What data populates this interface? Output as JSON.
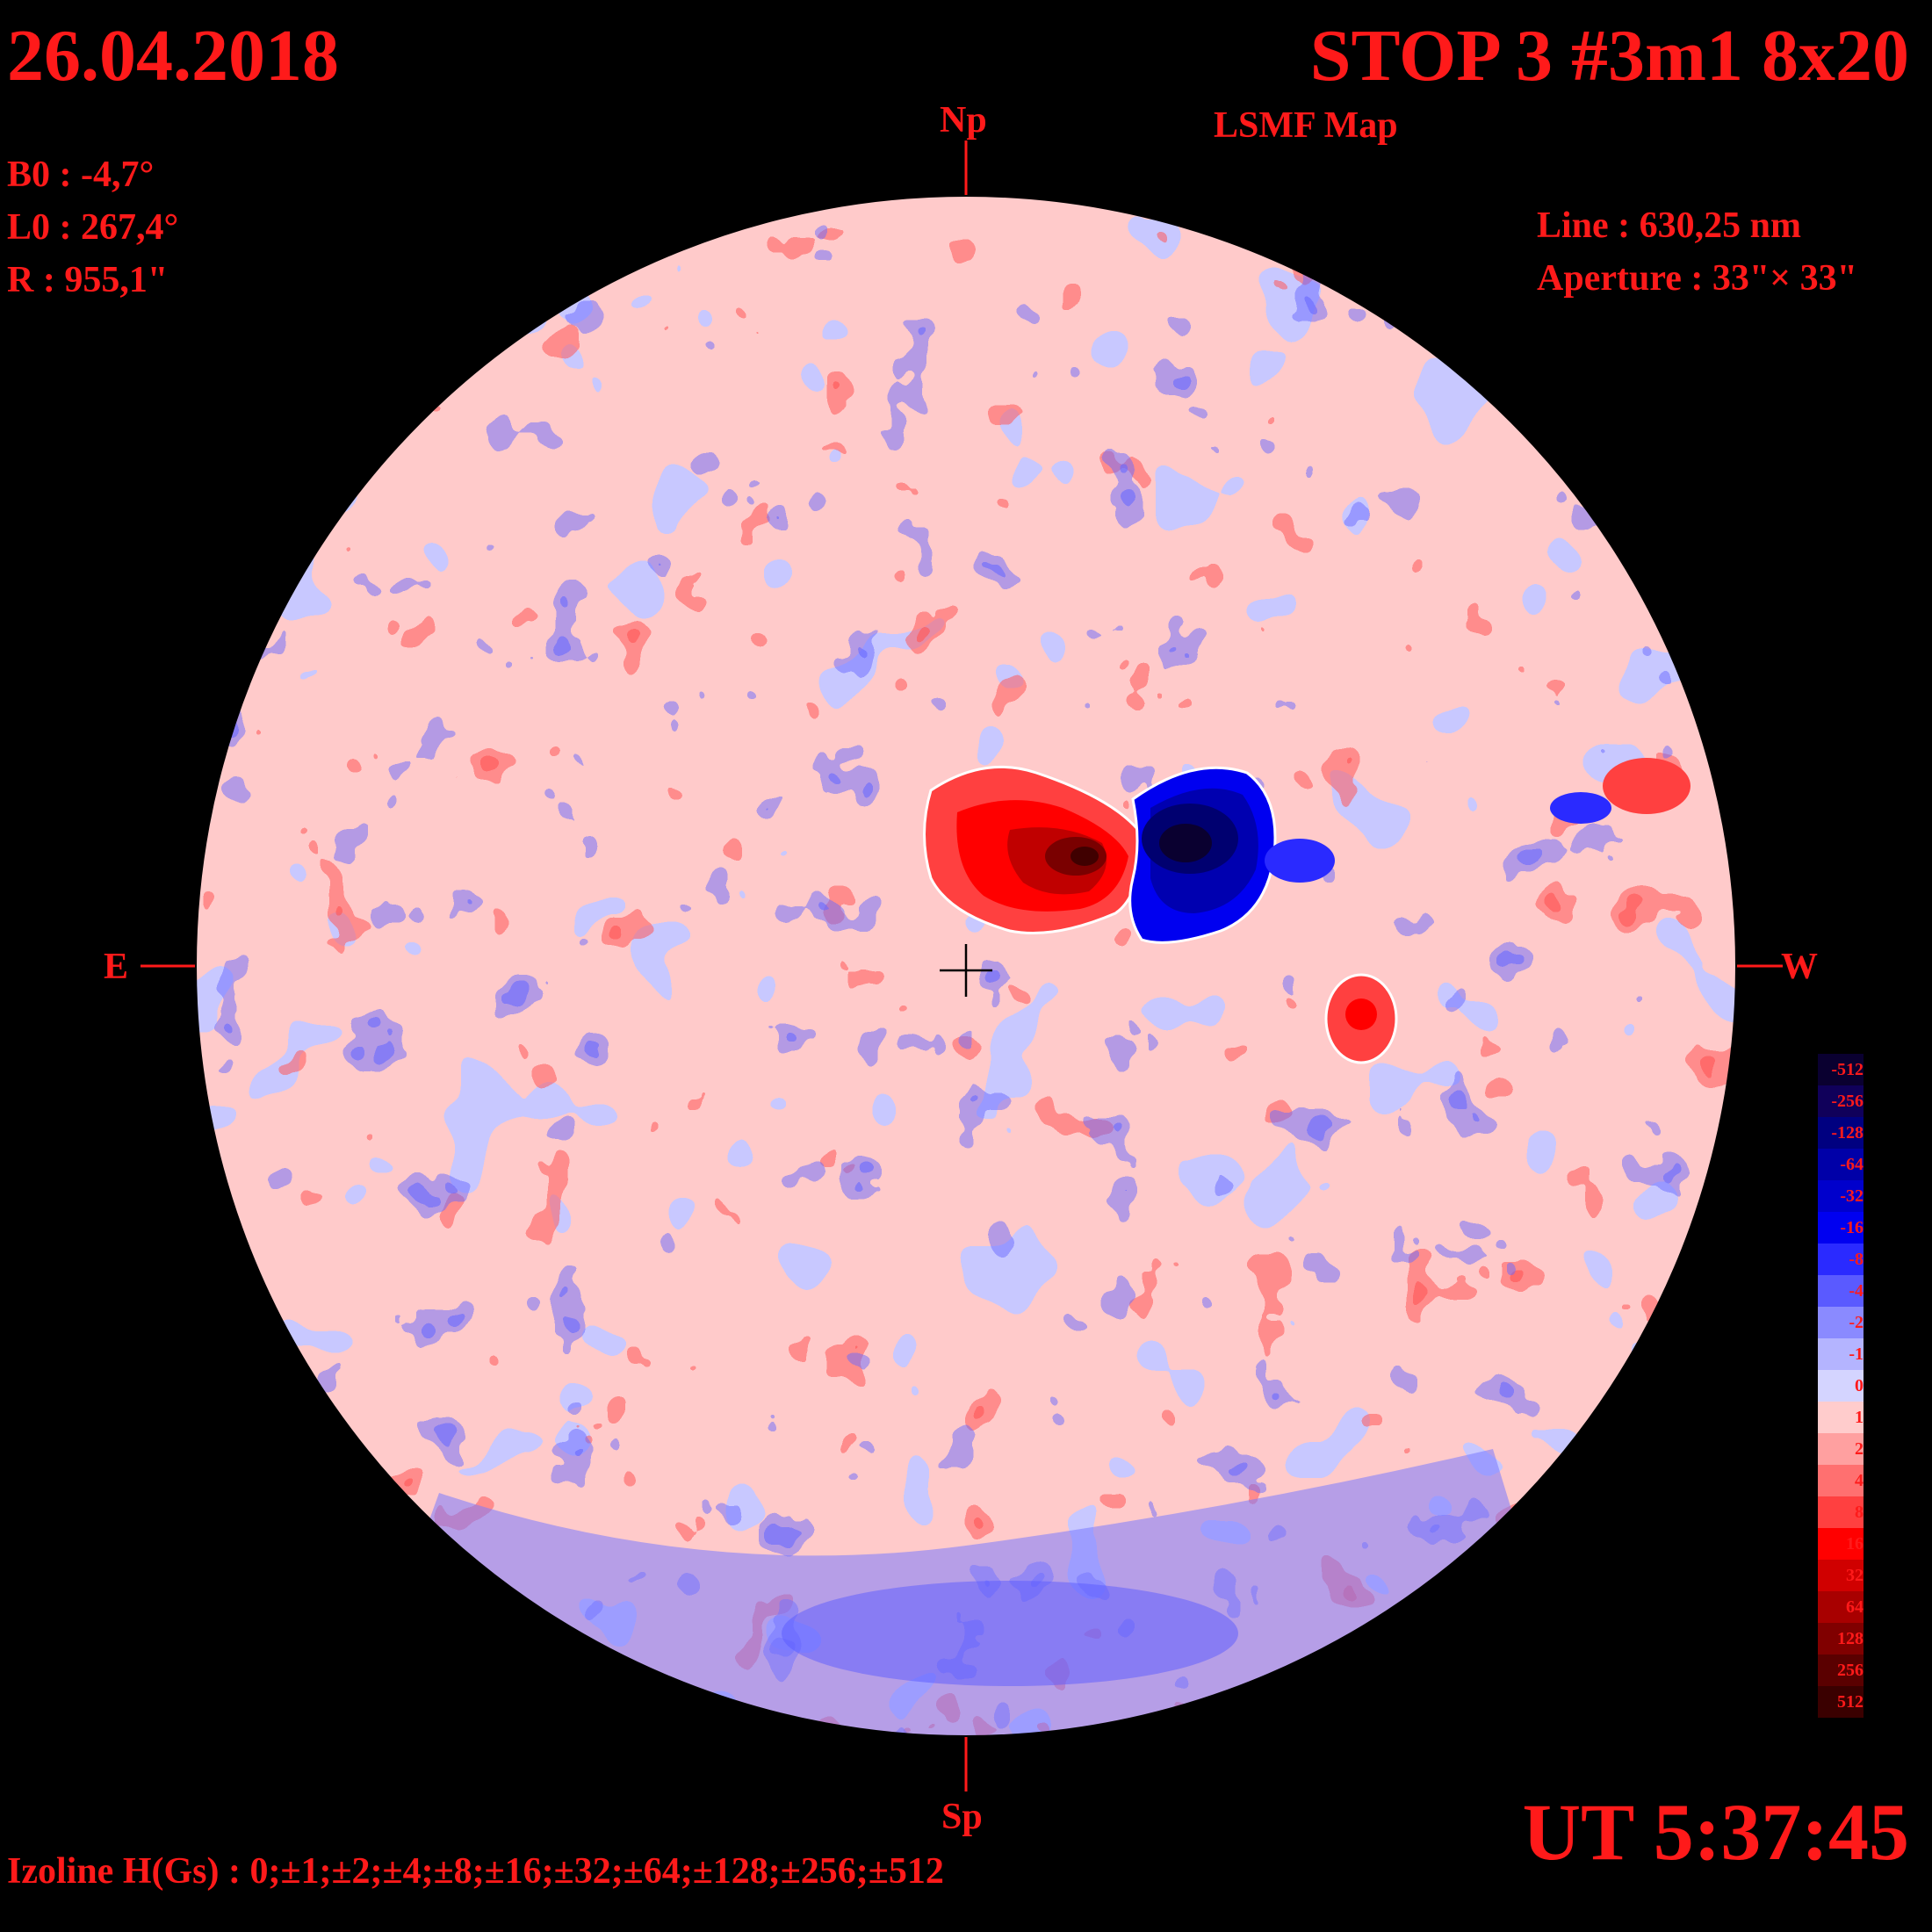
{
  "header": {
    "date": "26.04.2018",
    "title": "STOP 3 #3m1 8x20",
    "subtitle": "LSMF  Map"
  },
  "parameters": {
    "b0": "B0 : -4,7°",
    "l0": "L0 : 267,4°",
    "r": "R  : 955,1\""
  },
  "instrument": {
    "line": "Line :  630,25 nm",
    "aperture": "Aperture : 33\"× 33\""
  },
  "directions": {
    "north": "Np",
    "south": "Sp",
    "east": "E",
    "west": "W"
  },
  "footer": {
    "izoline": "Izoline H(Gs) : 0;±1;±2;±4;±8;±16;±32;±64;±128;±256;±512",
    "time": "UT 5:37:45"
  },
  "legend": {
    "entries": [
      {
        "label": "-512",
        "color": "#0a0030"
      },
      {
        "label": "-256",
        "color": "#10005a"
      },
      {
        "label": "-128",
        "color": "#000080"
      },
      {
        "label": "-64",
        "color": "#0000a8"
      },
      {
        "label": "-32",
        "color": "#0000cc"
      },
      {
        "label": "-16",
        "color": "#0000f0"
      },
      {
        "label": "-8",
        "color": "#2a2aff"
      },
      {
        "label": "-4",
        "color": "#5a5aff"
      },
      {
        "label": "-2",
        "color": "#8a8aff"
      },
      {
        "label": "-1",
        "color": "#b4b4ff"
      },
      {
        "label": "0",
        "color": "#d4d4ff"
      },
      {
        "label": "1",
        "color": "#ffcccc"
      },
      {
        "label": "2",
        "color": "#ffa0a0"
      },
      {
        "label": "4",
        "color": "#ff7070"
      },
      {
        "label": "8",
        "color": "#ff4040"
      },
      {
        "label": "16",
        "color": "#ff0000"
      },
      {
        "label": "32",
        "color": "#d00000"
      },
      {
        "label": "64",
        "color": "#a80000"
      },
      {
        "label": "128",
        "color": "#800000"
      },
      {
        "label": "256",
        "color": "#5a0000"
      },
      {
        "label": "512",
        "color": "#3a0000"
      }
    ]
  },
  "colors": {
    "text": "#ff1a1a",
    "background": "#000000",
    "positive_weak": "#ffc8c8",
    "negative_weak": "#c8c8ff"
  }
}
